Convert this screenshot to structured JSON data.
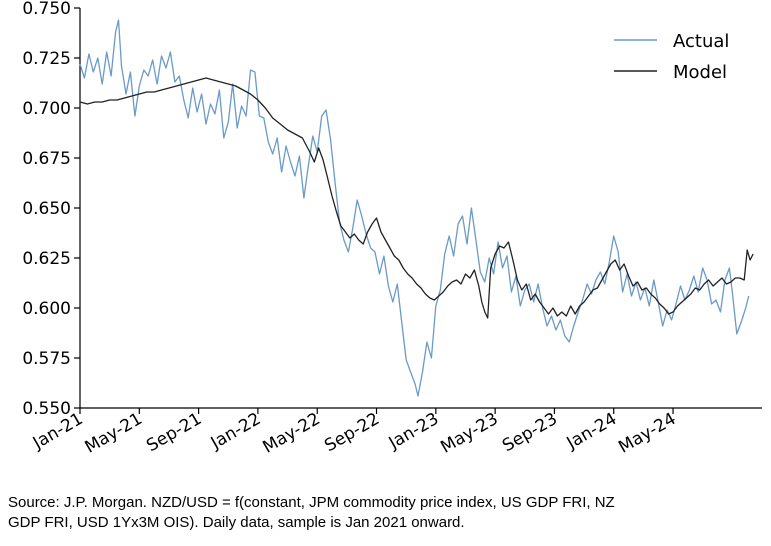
{
  "chart_data": {
    "type": "line",
    "title": "",
    "xlabel": "",
    "ylabel": "",
    "ylim": [
      0.55,
      0.75
    ],
    "yticks": [
      0.55,
      0.575,
      0.6,
      0.625,
      0.65,
      0.675,
      0.7,
      0.725,
      0.75
    ],
    "ytick_labels": [
      "0.550",
      "0.575",
      "0.600",
      "0.625",
      "0.650",
      "0.675",
      "0.700",
      "0.725",
      "0.750"
    ],
    "xlim": [
      0,
      46
    ],
    "xticks": [
      0,
      4,
      8,
      12,
      16,
      20,
      24,
      28,
      32,
      36,
      40
    ],
    "xtick_labels": [
      "Jan-21",
      "May-21",
      "Sep-21",
      "Jan-22",
      "May-22",
      "Sep-22",
      "Jan-23",
      "May-23",
      "Sep-23",
      "Jan-24",
      "May-24"
    ],
    "x_unit": "months since Jan 2021",
    "legend_position": "top-right",
    "series": [
      {
        "name": "Actual",
        "color": "#6a9ac8",
        "points": [
          [
            0,
            0.722
          ],
          [
            0.3,
            0.715
          ],
          [
            0.6,
            0.727
          ],
          [
            0.9,
            0.718
          ],
          [
            1.2,
            0.725
          ],
          [
            1.5,
            0.712
          ],
          [
            1.8,
            0.728
          ],
          [
            2.1,
            0.716
          ],
          [
            2.4,
            0.738
          ],
          [
            2.6,
            0.744
          ],
          [
            2.8,
            0.721
          ],
          [
            3.1,
            0.707
          ],
          [
            3.4,
            0.718
          ],
          [
            3.7,
            0.696
          ],
          [
            4.0,
            0.711
          ],
          [
            4.3,
            0.719
          ],
          [
            4.6,
            0.716
          ],
          [
            4.9,
            0.724
          ],
          [
            5.2,
            0.712
          ],
          [
            5.5,
            0.726
          ],
          [
            5.8,
            0.72
          ],
          [
            6.1,
            0.728
          ],
          [
            6.4,
            0.713
          ],
          [
            6.7,
            0.716
          ],
          [
            7.0,
            0.704
          ],
          [
            7.3,
            0.695
          ],
          [
            7.6,
            0.71
          ],
          [
            7.9,
            0.698
          ],
          [
            8.2,
            0.707
          ],
          [
            8.5,
            0.692
          ],
          [
            8.8,
            0.702
          ],
          [
            9.1,
            0.697
          ],
          [
            9.4,
            0.709
          ],
          [
            9.7,
            0.685
          ],
          [
            10.0,
            0.693
          ],
          [
            10.3,
            0.712
          ],
          [
            10.6,
            0.69
          ],
          [
            10.9,
            0.701
          ],
          [
            11.2,
            0.696
          ],
          [
            11.5,
            0.719
          ],
          [
            11.8,
            0.718
          ],
          [
            12.1,
            0.696
          ],
          [
            12.4,
            0.695
          ],
          [
            12.7,
            0.683
          ],
          [
            13.0,
            0.677
          ],
          [
            13.3,
            0.685
          ],
          [
            13.6,
            0.668
          ],
          [
            13.9,
            0.681
          ],
          [
            14.2,
            0.673
          ],
          [
            14.5,
            0.666
          ],
          [
            14.8,
            0.676
          ],
          [
            15.1,
            0.655
          ],
          [
            15.4,
            0.671
          ],
          [
            15.7,
            0.686
          ],
          [
            16.0,
            0.678
          ],
          [
            16.3,
            0.696
          ],
          [
            16.6,
            0.699
          ],
          [
            16.9,
            0.684
          ],
          [
            17.2,
            0.663
          ],
          [
            17.5,
            0.643
          ],
          [
            17.8,
            0.634
          ],
          [
            18.1,
            0.628
          ],
          [
            18.4,
            0.64
          ],
          [
            18.7,
            0.654
          ],
          [
            19.0,
            0.646
          ],
          [
            19.3,
            0.637
          ],
          [
            19.6,
            0.63
          ],
          [
            19.9,
            0.628
          ],
          [
            20.2,
            0.617
          ],
          [
            20.5,
            0.626
          ],
          [
            20.8,
            0.611
          ],
          [
            21.1,
            0.603
          ],
          [
            21.4,
            0.612
          ],
          [
            21.7,
            0.593
          ],
          [
            22.0,
            0.574
          ],
          [
            22.3,
            0.568
          ],
          [
            22.6,
            0.562
          ],
          [
            22.8,
            0.556
          ],
          [
            23.1,
            0.568
          ],
          [
            23.4,
            0.583
          ],
          [
            23.7,
            0.575
          ],
          [
            24.0,
            0.601
          ],
          [
            24.3,
            0.609
          ],
          [
            24.6,
            0.627
          ],
          [
            24.9,
            0.636
          ],
          [
            25.2,
            0.626
          ],
          [
            25.5,
            0.642
          ],
          [
            25.8,
            0.646
          ],
          [
            26.1,
            0.632
          ],
          [
            26.4,
            0.65
          ],
          [
            26.7,
            0.634
          ],
          [
            27.0,
            0.618
          ],
          [
            27.3,
            0.613
          ],
          [
            27.6,
            0.625
          ],
          [
            27.9,
            0.617
          ],
          [
            28.2,
            0.633
          ],
          [
            28.5,
            0.62
          ],
          [
            28.8,
            0.626
          ],
          [
            29.1,
            0.608
          ],
          [
            29.4,
            0.616
          ],
          [
            29.7,
            0.601
          ],
          [
            30.0,
            0.609
          ],
          [
            30.3,
            0.612
          ],
          [
            30.6,
            0.603
          ],
          [
            30.9,
            0.612
          ],
          [
            31.2,
            0.6
          ],
          [
            31.5,
            0.591
          ],
          [
            31.8,
            0.596
          ],
          [
            32.1,
            0.589
          ],
          [
            32.4,
            0.594
          ],
          [
            32.7,
            0.586
          ],
          [
            33.0,
            0.583
          ],
          [
            33.3,
            0.591
          ],
          [
            33.6,
            0.598
          ],
          [
            33.9,
            0.604
          ],
          [
            34.2,
            0.612
          ],
          [
            34.5,
            0.607
          ],
          [
            34.8,
            0.614
          ],
          [
            35.1,
            0.618
          ],
          [
            35.4,
            0.612
          ],
          [
            35.7,
            0.623
          ],
          [
            36.0,
            0.636
          ],
          [
            36.3,
            0.628
          ],
          [
            36.6,
            0.608
          ],
          [
            36.9,
            0.617
          ],
          [
            37.2,
            0.606
          ],
          [
            37.5,
            0.613
          ],
          [
            37.8,
            0.604
          ],
          [
            38.1,
            0.61
          ],
          [
            38.4,
            0.601
          ],
          [
            38.7,
            0.614
          ],
          [
            39.0,
            0.603
          ],
          [
            39.3,
            0.591
          ],
          [
            39.6,
            0.599
          ],
          [
            39.9,
            0.594
          ],
          [
            40.2,
            0.602
          ],
          [
            40.5,
            0.611
          ],
          [
            40.8,
            0.604
          ],
          [
            41.1,
            0.609
          ],
          [
            41.4,
            0.616
          ],
          [
            41.7,
            0.608
          ],
          [
            42.0,
            0.62
          ],
          [
            42.3,
            0.614
          ],
          [
            42.6,
            0.602
          ],
          [
            42.9,
            0.604
          ],
          [
            43.2,
            0.598
          ],
          [
            43.5,
            0.614
          ],
          [
            43.8,
            0.62
          ],
          [
            44.0,
            0.608
          ],
          [
            44.3,
            0.587
          ],
          [
            44.6,
            0.593
          ],
          [
            44.9,
            0.6
          ],
          [
            45.1,
            0.606
          ]
        ]
      },
      {
        "name": "Model",
        "color": "#222222",
        "points": [
          [
            0,
            0.703
          ],
          [
            0.5,
            0.702
          ],
          [
            1.0,
            0.703
          ],
          [
            1.5,
            0.703
          ],
          [
            2.0,
            0.704
          ],
          [
            2.5,
            0.704
          ],
          [
            3.0,
            0.705
          ],
          [
            3.5,
            0.706
          ],
          [
            4.0,
            0.707
          ],
          [
            4.5,
            0.708
          ],
          [
            5.0,
            0.708
          ],
          [
            5.5,
            0.709
          ],
          [
            6.0,
            0.71
          ],
          [
            6.5,
            0.711
          ],
          [
            7.0,
            0.712
          ],
          [
            7.5,
            0.713
          ],
          [
            8.0,
            0.714
          ],
          [
            8.5,
            0.715
          ],
          [
            9.0,
            0.714
          ],
          [
            9.5,
            0.713
          ],
          [
            10.0,
            0.712
          ],
          [
            10.5,
            0.711
          ],
          [
            11.0,
            0.709
          ],
          [
            11.5,
            0.707
          ],
          [
            12.0,
            0.704
          ],
          [
            12.5,
            0.7
          ],
          [
            13.0,
            0.695
          ],
          [
            13.5,
            0.692
          ],
          [
            14.0,
            0.689
          ],
          [
            14.5,
            0.687
          ],
          [
            15.0,
            0.685
          ],
          [
            15.5,
            0.678
          ],
          [
            15.8,
            0.673
          ],
          [
            16.1,
            0.68
          ],
          [
            16.4,
            0.674
          ],
          [
            16.7,
            0.665
          ],
          [
            17.0,
            0.656
          ],
          [
            17.3,
            0.648
          ],
          [
            17.6,
            0.641
          ],
          [
            17.9,
            0.638
          ],
          [
            18.2,
            0.635
          ],
          [
            18.5,
            0.637
          ],
          [
            18.8,
            0.634
          ],
          [
            19.1,
            0.632
          ],
          [
            19.4,
            0.638
          ],
          [
            19.7,
            0.642
          ],
          [
            20.0,
            0.645
          ],
          [
            20.3,
            0.638
          ],
          [
            20.6,
            0.634
          ],
          [
            20.9,
            0.63
          ],
          [
            21.2,
            0.626
          ],
          [
            21.5,
            0.624
          ],
          [
            21.8,
            0.62
          ],
          [
            22.1,
            0.617
          ],
          [
            22.4,
            0.615
          ],
          [
            22.7,
            0.612
          ],
          [
            23.0,
            0.61
          ],
          [
            23.3,
            0.607
          ],
          [
            23.6,
            0.605
          ],
          [
            23.9,
            0.604
          ],
          [
            24.2,
            0.606
          ],
          [
            24.5,
            0.608
          ],
          [
            24.8,
            0.611
          ],
          [
            25.1,
            0.613
          ],
          [
            25.4,
            0.614
          ],
          [
            25.7,
            0.612
          ],
          [
            26.0,
            0.617
          ],
          [
            26.3,
            0.615
          ],
          [
            26.6,
            0.619
          ],
          [
            26.9,
            0.611
          ],
          [
            27.1,
            0.603
          ],
          [
            27.3,
            0.598
          ],
          [
            27.5,
            0.595
          ],
          [
            27.7,
            0.62
          ],
          [
            28.0,
            0.627
          ],
          [
            28.3,
            0.631
          ],
          [
            28.6,
            0.63
          ],
          [
            28.9,
            0.633
          ],
          [
            29.2,
            0.624
          ],
          [
            29.5,
            0.614
          ],
          [
            29.8,
            0.609
          ],
          [
            30.1,
            0.612
          ],
          [
            30.4,
            0.604
          ],
          [
            30.7,
            0.607
          ],
          [
            31.0,
            0.603
          ],
          [
            31.3,
            0.6
          ],
          [
            31.6,
            0.597
          ],
          [
            31.9,
            0.6
          ],
          [
            32.2,
            0.596
          ],
          [
            32.5,
            0.598
          ],
          [
            32.8,
            0.596
          ],
          [
            33.1,
            0.601
          ],
          [
            33.4,
            0.597
          ],
          [
            33.7,
            0.601
          ],
          [
            34.0,
            0.603
          ],
          [
            34.3,
            0.606
          ],
          [
            34.6,
            0.609
          ],
          [
            34.9,
            0.61
          ],
          [
            35.2,
            0.614
          ],
          [
            35.5,
            0.618
          ],
          [
            35.8,
            0.622
          ],
          [
            36.1,
            0.624
          ],
          [
            36.4,
            0.619
          ],
          [
            36.7,
            0.622
          ],
          [
            37.0,
            0.616
          ],
          [
            37.3,
            0.611
          ],
          [
            37.6,
            0.613
          ],
          [
            37.9,
            0.609
          ],
          [
            38.2,
            0.61
          ],
          [
            38.5,
            0.607
          ],
          [
            38.8,
            0.605
          ],
          [
            39.1,
            0.602
          ],
          [
            39.4,
            0.6
          ],
          [
            39.7,
            0.597
          ],
          [
            40.0,
            0.598
          ],
          [
            40.3,
            0.601
          ],
          [
            40.6,
            0.603
          ],
          [
            40.9,
            0.605
          ],
          [
            41.2,
            0.607
          ],
          [
            41.5,
            0.61
          ],
          [
            41.8,
            0.609
          ],
          [
            42.1,
            0.612
          ],
          [
            42.4,
            0.614
          ],
          [
            42.7,
            0.611
          ],
          [
            43.0,
            0.613
          ],
          [
            43.3,
            0.615
          ],
          [
            43.6,
            0.612
          ],
          [
            43.9,
            0.613
          ],
          [
            44.2,
            0.615
          ],
          [
            44.5,
            0.615
          ],
          [
            44.8,
            0.614
          ],
          [
            45.0,
            0.629
          ],
          [
            45.2,
            0.624
          ],
          [
            45.4,
            0.627
          ]
        ]
      }
    ]
  },
  "caption": {
    "line1": "Source: J.P. Morgan. NZD/USD = f(constant, JPM commodity price index, US GDP FRI, NZ",
    "line2": "GDP FRI, USD 1Yx3M OIS). Daily data, sample is Jan 2021 onward."
  }
}
